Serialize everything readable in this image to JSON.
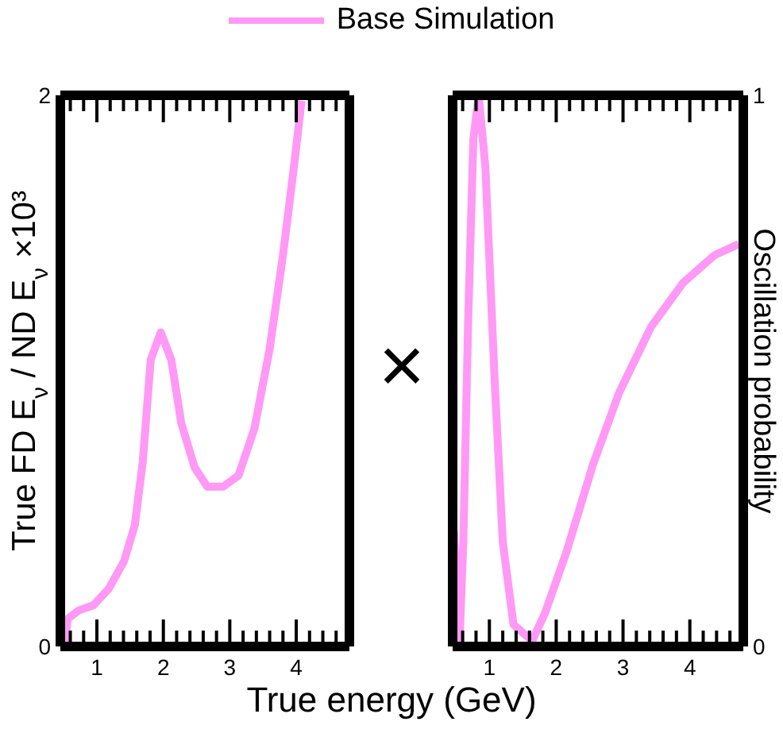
{
  "chart_data": [
    {
      "type": "line",
      "xlabel": "True energy (GeV)",
      "ylabel": "True FD E$_{ν}$ / ND E$_{ν}$ ×10³",
      "legend": "top",
      "annotations": [
        "×"
      ],
      "xlim": [
        0.45,
        4.8
      ],
      "xticks": [
        {
          "value": 0.6,
          "label": null
        },
        {
          "value": 0.8,
          "label": null
        },
        1,
        {
          "value": 1.2,
          "label": null
        },
        {
          "value": 1.4,
          "label": null
        },
        {
          "value": 1.6,
          "label": null
        },
        {
          "value": 1.8,
          "label": null
        },
        2,
        {
          "value": 2.2,
          "label": null
        },
        {
          "value": 2.4,
          "label": null
        },
        {
          "value": 2.6,
          "label": null
        },
        {
          "value": 2.8,
          "label": null
        },
        3,
        {
          "value": 3.2,
          "label": null
        },
        {
          "value": 3.4,
          "label": null
        },
        {
          "value": 3.6,
          "label": null
        },
        {
          "value": 3.8,
          "label": null
        },
        4,
        {
          "value": 4.2,
          "label": null
        },
        {
          "value": 4.4,
          "label": null
        },
        {
          "value": 4.6,
          "label": null
        }
      ],
      "ylim": [
        0,
        2
      ],
      "yticks": [
        0,
        2
      ],
      "series": [
        {
          "name": "Base Simulation",
          "color": "#ff99f5",
          "x": [
            0.52,
            0.56,
            0.72,
            0.95,
            1.18,
            1.41,
            1.57,
            1.69,
            1.81,
            1.96,
            2.12,
            2.27,
            2.47,
            2.66,
            2.9,
            3.13,
            3.37,
            3.6,
            3.8,
            3.96,
            4.08
          ],
          "values": [
            0,
            0.1,
            0.13,
            0.15,
            0.21,
            0.31,
            0.44,
            0.67,
            1.04,
            1.14,
            1.04,
            0.81,
            0.65,
            0.58,
            0.58,
            0.62,
            0.79,
            1.08,
            1.42,
            1.73,
            1.98
          ]
        }
      ]
    },
    {
      "type": "line",
      "y2label": "Oscillation probability",
      "xlim": [
        0.45,
        4.8
      ],
      "xticks": [
        {
          "value": 0.6,
          "label": null
        },
        {
          "value": 0.8,
          "label": null
        },
        1,
        {
          "value": 1.2,
          "label": null
        },
        {
          "value": 1.4,
          "label": null
        },
        {
          "value": 1.6,
          "label": null
        },
        {
          "value": 1.8,
          "label": null
        },
        2,
        {
          "value": 2.2,
          "label": null
        },
        {
          "value": 2.4,
          "label": null
        },
        {
          "value": 2.6,
          "label": null
        },
        {
          "value": 2.8,
          "label": null
        },
        3,
        {
          "value": 3.2,
          "label": null
        },
        {
          "value": 3.4,
          "label": null
        },
        {
          "value": 3.6,
          "label": null
        },
        {
          "value": 3.8,
          "label": null
        },
        4,
        {
          "value": 4.2,
          "label": null
        },
        {
          "value": 4.4,
          "label": null
        },
        {
          "value": 4.6,
          "label": null
        }
      ],
      "y2lim": [
        0,
        1
      ],
      "y2ticks": [
        0,
        1
      ],
      "series": [
        {
          "color": "#ff99f5",
          "axis": "y2",
          "x": [
            0.47,
            0.55,
            0.61,
            0.68,
            0.76,
            0.84,
            0.94,
            1.08,
            1.2,
            1.36,
            1.64,
            1.83,
            2.15,
            2.55,
            2.94,
            3.42,
            3.9,
            4.37,
            4.73
          ],
          "values": [
            0.21,
            0,
            0.19,
            0.58,
            0.92,
            1,
            0.87,
            0.48,
            0.19,
            0.04,
            0.01,
            0.06,
            0.17,
            0.33,
            0.46,
            0.58,
            0.66,
            0.71,
            0.73
          ]
        }
      ]
    }
  ]
}
